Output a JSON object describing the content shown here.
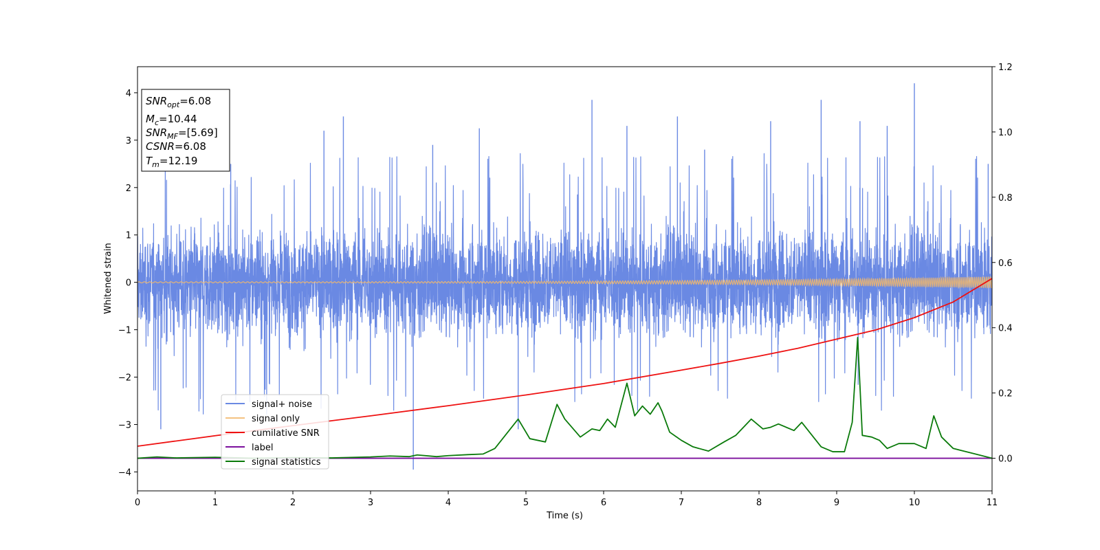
{
  "chart_data": {
    "type": "line",
    "xlabel": "Time (s)",
    "ylabel": "Whitened strain",
    "xlim": [
      0,
      11
    ],
    "ylim": [
      -4.4,
      4.55
    ],
    "y2lim": [
      -0.1,
      1.2
    ],
    "x_ticks": [
      0,
      1,
      2,
      3,
      4,
      5,
      6,
      7,
      8,
      9,
      10,
      11
    ],
    "x_tick_labels": [
      "0",
      "1",
      "2",
      "3",
      "4",
      "5",
      "6",
      "7",
      "8",
      "9",
      "10",
      "11"
    ],
    "y_ticks": [
      -4,
      -3,
      -2,
      -1,
      0,
      1,
      2,
      3,
      4
    ],
    "y_tick_labels": [
      "−4",
      "−3",
      "−2",
      "−1",
      "0",
      "1",
      "2",
      "3",
      "4"
    ],
    "y2_ticks": [
      0.0,
      0.2,
      0.4,
      0.6,
      0.8,
      1.0,
      1.2
    ],
    "y2_tick_labels": [
      "0.0",
      "0.2",
      "0.4",
      "0.6",
      "0.8",
      "1.0",
      "1.2"
    ],
    "grid": false,
    "legend_placement": "lower-left",
    "colors": {
      "signal_noise": "#6a89e3",
      "signal_only": "#f3b86a",
      "cumulative_snr": "#ee1111",
      "label": "#7b0f9c",
      "signal_statistics": "#0a7a0a"
    },
    "stats_box": [
      {
        "main": "SNR",
        "sub": "opt",
        "rest": "=6.08"
      },
      {
        "main": "M",
        "sub": "c",
        "rest": "=10.44"
      },
      {
        "main": "SNR",
        "sub": "MF",
        "rest": "=[5.69]"
      },
      {
        "main": "CSNR",
        "sub": "",
        "rest": "=6.08"
      },
      {
        "main": "T",
        "sub": "m",
        "rest": "=12.19"
      }
    ],
    "series": [
      {
        "name": "signal+ noise",
        "axis": "left",
        "description": "dense whitened noise, approx. 0 ± 1.5 with spikes",
        "spikes_x": [
          0.3,
          1.2,
          2.4,
          2.65,
          3.55,
          3.8,
          4.4,
          4.9,
          5.85,
          6.3,
          6.95,
          7.3,
          8.15,
          8.8,
          9.3,
          9.65,
          10.0,
          10.95
        ],
        "spikes_y": [
          -3.1,
          2.5,
          3.2,
          3.5,
          -3.95,
          2.9,
          3.25,
          -3.1,
          3.85,
          3.3,
          3.5,
          2.8,
          3.4,
          3.85,
          3.4,
          3.3,
          4.2,
          2.5
        ]
      },
      {
        "name": "signal only",
        "axis": "left",
        "description": "chirp oscillation around 0, amplitude growing to ~0.12 at t=11"
      },
      {
        "name": "cumilative SNR",
        "axis": "right",
        "x": [
          0,
          1,
          2,
          3,
          4,
          5,
          6,
          7,
          7.5,
          8,
          8.5,
          9,
          9.5,
          10,
          10.5,
          11
        ],
        "values": [
          0.037,
          0.069,
          0.1,
          0.13,
          0.161,
          0.194,
          0.229,
          0.27,
          0.291,
          0.313,
          0.337,
          0.365,
          0.393,
          0.431,
          0.479,
          0.551
        ]
      },
      {
        "name": "label",
        "axis": "right",
        "x": [
          0,
          11
        ],
        "values": [
          0.0,
          0.0
        ]
      },
      {
        "name": "signal statistics",
        "axis": "right",
        "x": [
          0,
          0.25,
          0.5,
          1.0,
          1.5,
          2.0,
          2.5,
          3.0,
          3.25,
          3.5,
          3.6,
          3.85,
          4.0,
          4.25,
          4.45,
          4.6,
          4.75,
          4.9,
          5.05,
          5.25,
          5.4,
          5.5,
          5.7,
          5.85,
          5.95,
          6.05,
          6.15,
          6.3,
          6.4,
          6.5,
          6.6,
          6.7,
          6.75,
          6.85,
          7.0,
          7.15,
          7.35,
          7.55,
          7.7,
          7.9,
          8.05,
          8.15,
          8.25,
          8.45,
          8.55,
          8.65,
          8.8,
          8.95,
          9.1,
          9.2,
          9.27,
          9.33,
          9.45,
          9.55,
          9.65,
          9.8,
          10.0,
          10.15,
          10.25,
          10.35,
          10.5,
          10.75,
          11.0
        ],
        "values": [
          0.0,
          0.004,
          0.001,
          0.003,
          0.0,
          0.002,
          0.001,
          0.004,
          0.007,
          0.005,
          0.01,
          0.005,
          0.008,
          0.011,
          0.013,
          0.03,
          0.075,
          0.12,
          0.06,
          0.05,
          0.165,
          0.12,
          0.065,
          0.09,
          0.085,
          0.12,
          0.095,
          0.23,
          0.13,
          0.16,
          0.135,
          0.17,
          0.145,
          0.08,
          0.055,
          0.035,
          0.022,
          0.05,
          0.07,
          0.12,
          0.09,
          0.095,
          0.105,
          0.085,
          0.11,
          0.08,
          0.035,
          0.02,
          0.02,
          0.11,
          0.37,
          0.07,
          0.065,
          0.055,
          0.03,
          0.045,
          0.045,
          0.03,
          0.13,
          0.065,
          0.03,
          0.015,
          0.0
        ]
      }
    ]
  }
}
